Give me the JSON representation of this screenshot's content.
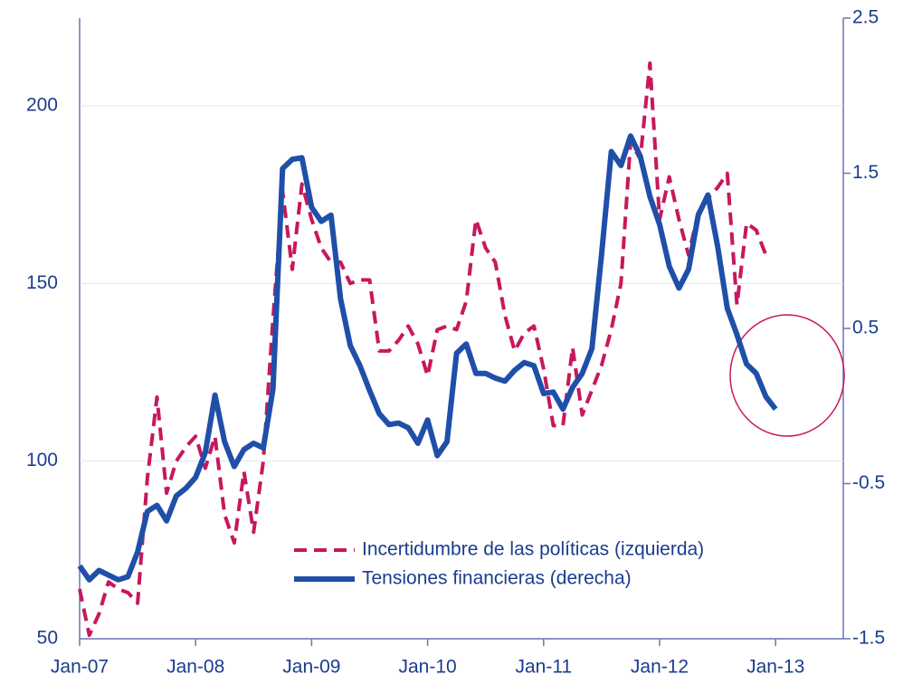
{
  "chart_data": {
    "type": "line",
    "categories": [
      "Jan-07",
      null,
      null,
      null,
      null,
      null,
      null,
      null,
      null,
      null,
      null,
      null,
      "Jan-08",
      null,
      null,
      null,
      null,
      null,
      null,
      null,
      null,
      null,
      null,
      null,
      "Jan-09",
      null,
      null,
      null,
      null,
      null,
      null,
      null,
      null,
      null,
      null,
      null,
      "Jan-10",
      null,
      null,
      null,
      null,
      null,
      null,
      null,
      null,
      null,
      null,
      null,
      "Jan-11",
      null,
      null,
      null,
      null,
      null,
      null,
      null,
      null,
      null,
      null,
      null,
      "Jan-12",
      null,
      null,
      null,
      null,
      null,
      null,
      null,
      null,
      null,
      null,
      null,
      "Jan-13",
      null,
      null,
      null,
      null,
      null,
      null,
      null
    ],
    "series": [
      {
        "name": "Incertidumbre de las políticas (izquierda)",
        "color": "#c8175d",
        "dash": true,
        "values": [
          64,
          51,
          57,
          66,
          64,
          63,
          60,
          95,
          118,
          91,
          100,
          104,
          107,
          98,
          107,
          85,
          77,
          97,
          80,
          100,
          140,
          176,
          154,
          178,
          168,
          160,
          156,
          156,
          150,
          151,
          151,
          131,
          131,
          134,
          138,
          133,
          124,
          137,
          138,
          137,
          145,
          168,
          160,
          156,
          141,
          131,
          136,
          138,
          126,
          110,
          110,
          132,
          113,
          120,
          127,
          137,
          150,
          190,
          185,
          212,
          168,
          180,
          168,
          158,
          170,
          174,
          177,
          181,
          144,
          167,
          165,
          158,
          null,
          null,
          null,
          null,
          null,
          null,
          null,
          null
        ]
      },
      {
        "name": "Tensiones financieras (derecha)",
        "color": "#1f4fa8",
        "axis": "y2",
        "values": [
          -1.03,
          -1.12,
          -1.06,
          -1.09,
          -1.12,
          -1.1,
          -0.94,
          -0.68,
          -0.64,
          -0.74,
          -0.58,
          -0.53,
          -0.46,
          -0.3,
          0.07,
          -0.23,
          -0.39,
          -0.28,
          -0.24,
          -0.27,
          0.11,
          1.53,
          1.59,
          1.6,
          1.28,
          1.19,
          1.23,
          0.69,
          0.39,
          0.26,
          0.1,
          -0.05,
          -0.12,
          -0.11,
          -0.14,
          -0.24,
          -0.09,
          -0.32,
          -0.23,
          0.34,
          0.4,
          0.21,
          0.21,
          0.18,
          0.16,
          0.23,
          0.28,
          0.26,
          0.08,
          0.09,
          -0.02,
          0.12,
          0.21,
          0.37,
          0.98,
          1.64,
          1.55,
          1.74,
          1.61,
          1.35,
          1.17,
          0.9,
          0.76,
          0.88,
          1.23,
          1.36,
          1.03,
          0.63,
          0.46,
          0.27,
          0.21,
          0.06,
          -0.02,
          null,
          null,
          null,
          null,
          null,
          null,
          null
        ]
      }
    ],
    "ylim": [
      50,
      224.7
    ],
    "yticks": [
      50,
      100,
      150,
      200
    ],
    "y2lim": [
      -1.5,
      2.5
    ],
    "y2ticks": [
      -1.5,
      -0.5,
      0.5,
      1.5,
      2.5
    ],
    "grid": true,
    "legend": "bottom-center"
  }
}
